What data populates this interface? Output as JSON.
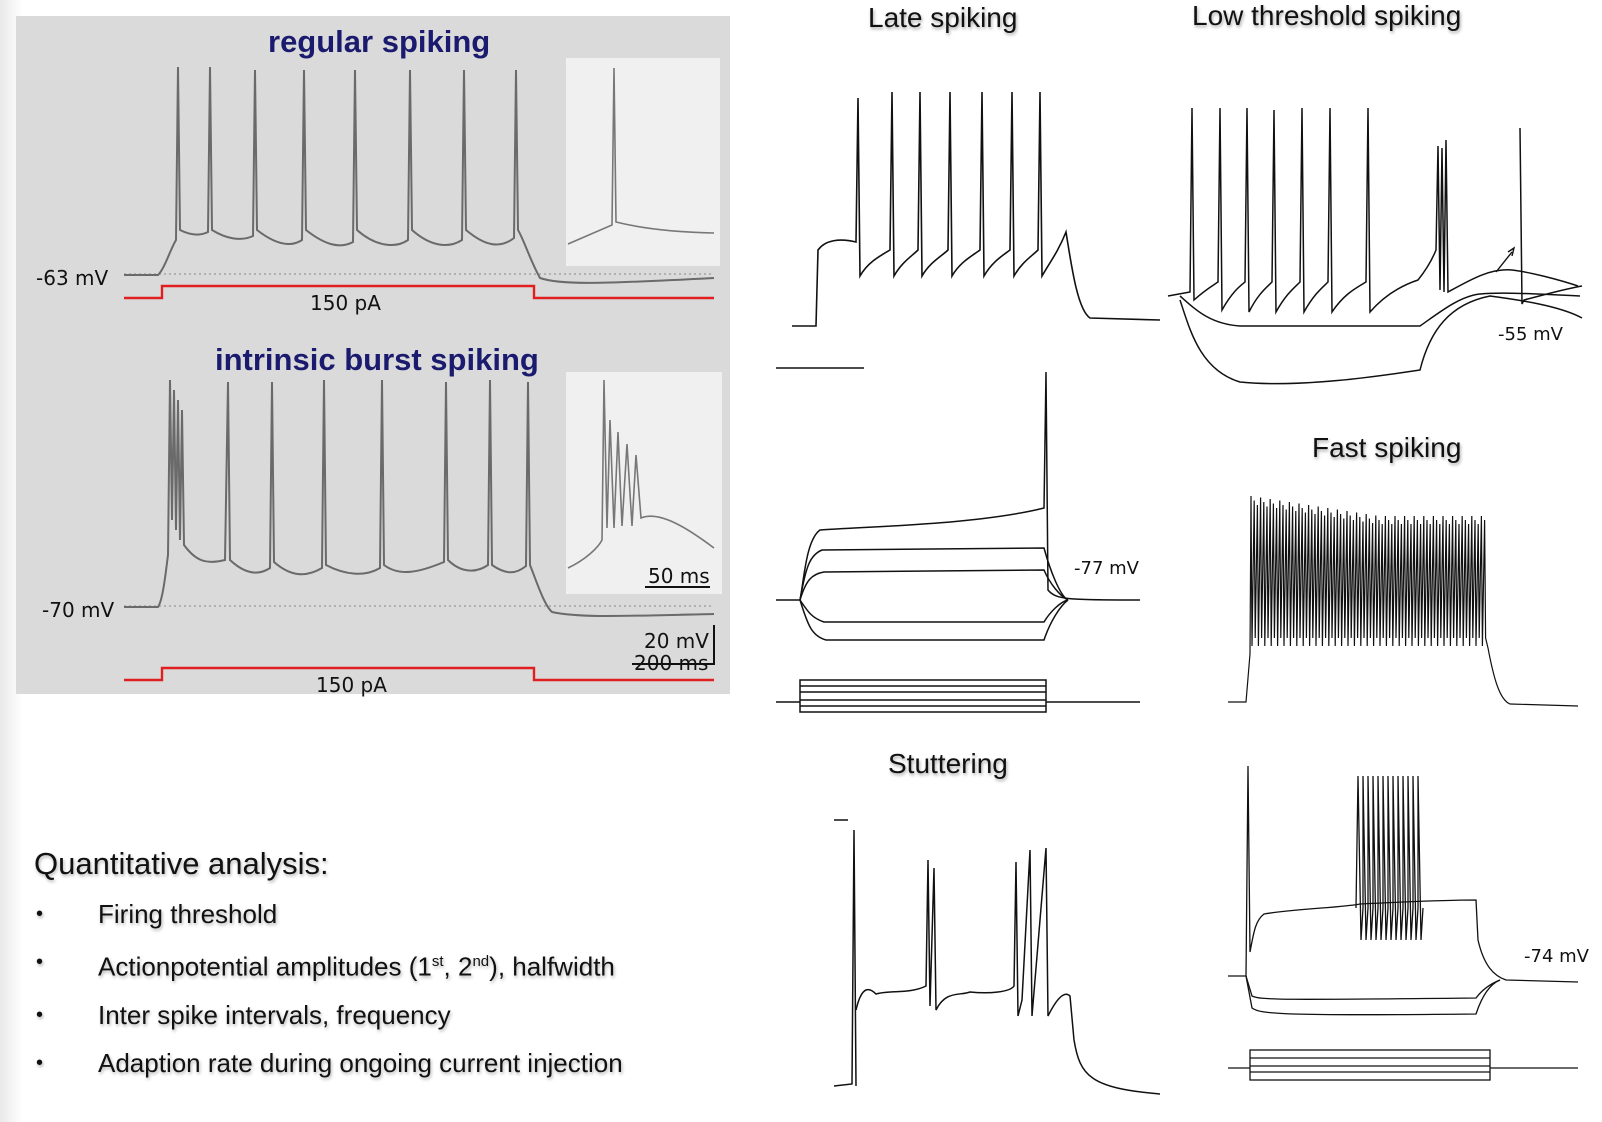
{
  "panel_left": {
    "regular": {
      "title": "regular spiking",
      "rest_label": "-63 mV",
      "current_label": "150 pA"
    },
    "burst": {
      "title": "intrinsic burst spiking",
      "rest_label": "-70 mV",
      "current_label": "150 pA",
      "inset_scale": "50 ms",
      "scalebar_v": "20 mV",
      "scalebar_t": "200 ms"
    }
  },
  "panels_right": {
    "late": {
      "title": "Late spiking"
    },
    "lts": {
      "title": "Low threshold spiking",
      "voltage_label": "-55 mV"
    },
    "middle_left": {
      "voltage_label": "-77 mV"
    },
    "fast": {
      "title": "Fast spiking"
    },
    "stutter": {
      "title": "Stuttering"
    },
    "bottom_right": {
      "voltage_label": "-74 mV"
    }
  },
  "analysis": {
    "heading": "Quantitative analysis:",
    "items": [
      {
        "text": "Firing threshold"
      },
      {
        "pre": "Actionpotential amplitudes (1",
        "sup1": "st",
        "mid": ", 2",
        "sup2": "nd",
        "post": "), halfwidth"
      },
      {
        "text": "Inter spike intervals, frequency"
      },
      {
        "text": "Adaption rate during ongoing current injection"
      }
    ],
    "bullet": "•"
  }
}
